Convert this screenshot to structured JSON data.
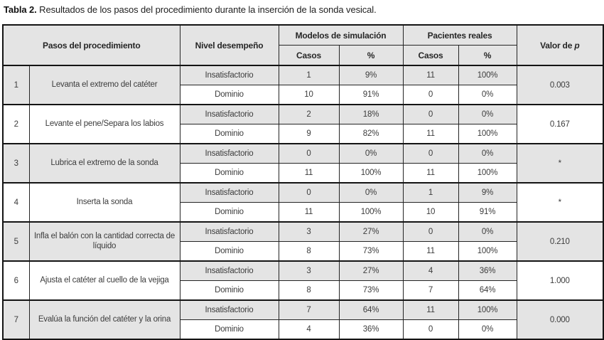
{
  "title": {
    "label": "Tabla 2.",
    "text": "Resultados de los pasos del procedimiento durante la inserción de la sonda vesical."
  },
  "table": {
    "headers": {
      "steps": "Pasos del procedimiento",
      "level": "Nivel desempeño",
      "group_simulation": "Modelos de simulación",
      "group_patients": "Pacientes reales",
      "cases": "Casos",
      "percent": "%",
      "p_prefix": "Valor de ",
      "p_symbol": "p"
    },
    "rows": [
      {
        "num": "1",
        "step": "Levanta el extremo del catéter",
        "levels": [
          {
            "label": "Insatisfactorio",
            "sim_casos": "1",
            "sim_pct": "9%",
            "real_casos": "11",
            "real_pct": "100%"
          },
          {
            "label": "Dominio",
            "sim_casos": "10",
            "sim_pct": "91%",
            "real_casos": "0",
            "real_pct": "0%"
          }
        ],
        "p": "0.003"
      },
      {
        "num": "2",
        "step": "Levante el pene/Separa los labios",
        "levels": [
          {
            "label": "Insatisfactorio",
            "sim_casos": "2",
            "sim_pct": "18%",
            "real_casos": "0",
            "real_pct": "0%"
          },
          {
            "label": "Dominio",
            "sim_casos": "9",
            "sim_pct": "82%",
            "real_casos": "11",
            "real_pct": "100%"
          }
        ],
        "p": "0.167"
      },
      {
        "num": "3",
        "step": "Lubrica el extremo de la sonda",
        "levels": [
          {
            "label": "Insatisfactorio",
            "sim_casos": "0",
            "sim_pct": "0%",
            "real_casos": "0",
            "real_pct": "0%"
          },
          {
            "label": "Dominio",
            "sim_casos": "11",
            "sim_pct": "100%",
            "real_casos": "11",
            "real_pct": "100%"
          }
        ],
        "p": "*"
      },
      {
        "num": "4",
        "step": "Inserta la sonda",
        "levels": [
          {
            "label": "Insatisfactorio",
            "sim_casos": "0",
            "sim_pct": "0%",
            "real_casos": "1",
            "real_pct": "9%"
          },
          {
            "label": "Dominio",
            "sim_casos": "11",
            "sim_pct": "100%",
            "real_casos": "10",
            "real_pct": "91%"
          }
        ],
        "p": "*"
      },
      {
        "num": "5",
        "step": "Infla el balón con la cantidad correcta de líquido",
        "levels": [
          {
            "label": "Insatisfactorio",
            "sim_casos": "3",
            "sim_pct": "27%",
            "real_casos": "0",
            "real_pct": "0%"
          },
          {
            "label": "Dominio",
            "sim_casos": "8",
            "sim_pct": "73%",
            "real_casos": "11",
            "real_pct": "100%"
          }
        ],
        "p": "0.210"
      },
      {
        "num": "6",
        "step": "Ajusta el catéter al cuello de la vejiga",
        "levels": [
          {
            "label": "Insatisfactorio",
            "sim_casos": "3",
            "sim_pct": "27%",
            "real_casos": "4",
            "real_pct": "36%"
          },
          {
            "label": "Dominio",
            "sim_casos": "8",
            "sim_pct": "73%",
            "real_casos": "7",
            "real_pct": "64%"
          }
        ],
        "p": "1.000"
      },
      {
        "num": "7",
        "step": "Evalúa la función del catéter y la orina",
        "levels": [
          {
            "label": "Insatisfactorio",
            "sim_casos": "7",
            "sim_pct": "64%",
            "real_casos": "11",
            "real_pct": "100%"
          },
          {
            "label": "Dominio",
            "sim_casos": "4",
            "sim_pct": "36%",
            "real_casos": "0",
            "real_pct": "0%"
          }
        ],
        "p": "0.000"
      }
    ]
  },
  "colors": {
    "shade": "#e4e4e4",
    "border": "#141414",
    "text": "#3c3c3c"
  }
}
